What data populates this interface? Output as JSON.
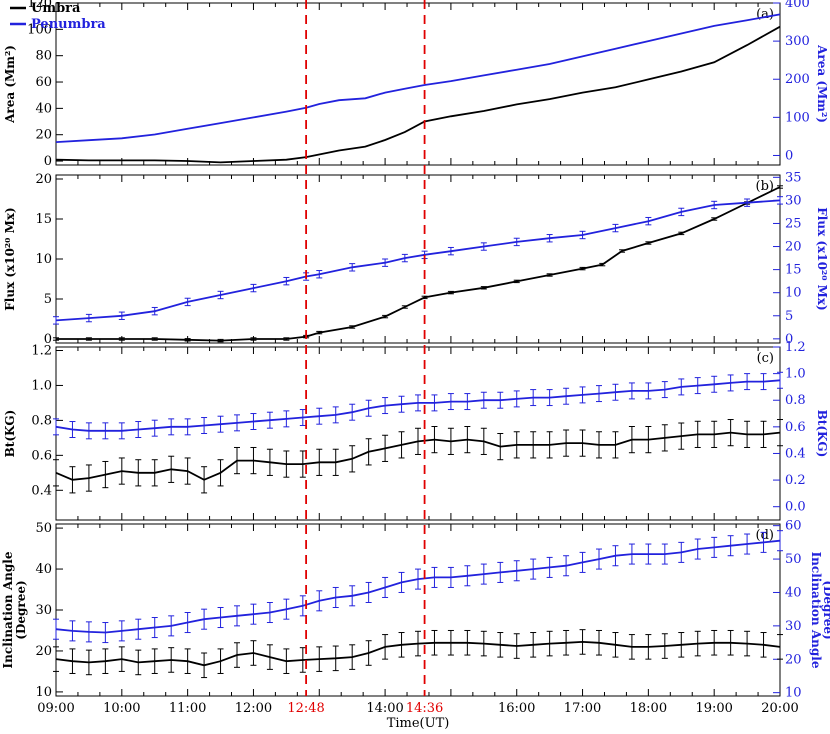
{
  "colors": {
    "umbra": "#000000",
    "penumbra": "#2222dd",
    "marker": "#e00000"
  },
  "legend": [
    {
      "label": "Umbra",
      "color": "#000000"
    },
    {
      "label": "Penumbra",
      "color": "#2222dd"
    }
  ],
  "time_axis": {
    "label": "Time(UT)",
    "range_hours": [
      9,
      20
    ],
    "ticks": [
      {
        "t": 9,
        "label": "09:00"
      },
      {
        "t": 10,
        "label": "10:00"
      },
      {
        "t": 11,
        "label": "11:00"
      },
      {
        "t": 12,
        "label": "12:00"
      },
      {
        "t": 14,
        "label": "14:00"
      },
      {
        "t": 16,
        "label": "16:00"
      },
      {
        "t": 17,
        "label": "17:00"
      },
      {
        "t": 18,
        "label": "18:00"
      },
      {
        "t": 19,
        "label": "19:00"
      },
      {
        "t": 20,
        "label": "20:00"
      }
    ],
    "markers": [
      {
        "t": 12.8,
        "label": "12:48"
      },
      {
        "t": 14.6,
        "label": "14:36"
      }
    ]
  },
  "chart_data": [
    {
      "type": "line",
      "panel": "(a)",
      "left_axis": {
        "label": "Area (Mm²)",
        "ylim": [
          -3,
          120
        ],
        "ticks": [
          0,
          20,
          40,
          60,
          80,
          100,
          120
        ]
      },
      "right_axis": {
        "label": "Area (Mm²)",
        "ylim": [
          -25,
          400
        ],
        "ticks": [
          0,
          100,
          200,
          300,
          400
        ]
      },
      "series": [
        {
          "name": "Umbra",
          "axis": "left",
          "x": [
            9,
            9.5,
            10,
            10.5,
            11,
            11.5,
            12,
            12.5,
            12.8,
            13.3,
            13.7,
            14,
            14.3,
            14.6,
            15,
            15.5,
            16,
            16.5,
            17,
            17.5,
            18,
            18.5,
            19,
            19.5,
            20
          ],
          "y": [
            1,
            0.5,
            0.5,
            0.5,
            0,
            -1,
            0,
            1,
            3,
            8,
            11,
            16,
            22,
            30,
            34,
            38,
            43,
            47,
            52,
            56,
            62,
            68,
            75,
            88,
            102
          ]
        },
        {
          "name": "Penumbra",
          "axis": "right",
          "x": [
            9,
            9.5,
            10,
            10.5,
            11,
            11.5,
            12,
            12.5,
            12.8,
            13,
            13.3,
            13.7,
            14,
            14.3,
            14.6,
            15,
            15.5,
            16,
            16.5,
            17,
            17.5,
            18,
            18.5,
            19,
            19.5,
            20
          ],
          "y": [
            35,
            40,
            45,
            55,
            70,
            85,
            100,
            115,
            125,
            135,
            145,
            150,
            165,
            175,
            185,
            195,
            210,
            225,
            240,
            260,
            280,
            300,
            320,
            340,
            355,
            370
          ]
        }
      ]
    },
    {
      "type": "line",
      "panel": "(b)",
      "left_axis": {
        "label": "Flux (x10²⁰ Mx)",
        "ylim": [
          -0.5,
          20.5
        ],
        "ticks": [
          0,
          5,
          10,
          15,
          20
        ]
      },
      "right_axis": {
        "label": "Flux (x10²⁰ Mx)",
        "ylim": [
          -0.9,
          35.5
        ],
        "ticks": [
          0,
          5,
          10,
          15,
          20,
          25,
          30,
          35
        ]
      },
      "series": [
        {
          "name": "Umbra",
          "axis": "left",
          "err": 0.15,
          "x": [
            9,
            9.5,
            10,
            10.5,
            11,
            11.5,
            12,
            12.5,
            12.8,
            13,
            13.5,
            14,
            14.3,
            14.6,
            15,
            15.5,
            16,
            16.5,
            17,
            17.3,
            17.6,
            18,
            18.5,
            19,
            19.5,
            20
          ],
          "y": [
            0,
            0,
            0,
            0,
            -0.1,
            -0.2,
            0,
            0,
            0.3,
            0.8,
            1.5,
            2.8,
            4,
            5.2,
            5.8,
            6.4,
            7.2,
            8,
            8.8,
            9.3,
            11,
            12,
            13.2,
            15,
            17,
            19
          ]
        },
        {
          "name": "Penumbra",
          "axis": "right",
          "err": 0.8,
          "x": [
            9,
            9.5,
            10,
            10.5,
            11,
            11.5,
            12,
            12.5,
            12.8,
            13,
            13.5,
            14,
            14.3,
            14.6,
            15,
            15.5,
            16,
            16.5,
            17,
            17.5,
            18,
            18.5,
            19,
            19.5,
            20
          ],
          "y": [
            4,
            4.5,
            5,
            6,
            8,
            9.5,
            11,
            12.5,
            13.5,
            14,
            15.5,
            16.5,
            17.5,
            18.2,
            19,
            20,
            21,
            21.8,
            22.5,
            24,
            25.5,
            27.5,
            29,
            29.5,
            30
          ]
        }
      ]
    },
    {
      "type": "line",
      "panel": "(c)",
      "left_axis": {
        "label": "Bt(KG)",
        "ylim": [
          0.23,
          1.22
        ],
        "ticks": [
          0.4,
          0.6,
          0.8,
          1.0,
          1.2
        ]
      },
      "right_axis": {
        "label": "Bt(KG)",
        "ylim": [
          -0.1,
          1.2
        ],
        "ticks": [
          0.0,
          0.2,
          0.4,
          0.6,
          0.8,
          1.0,
          1.2
        ]
      },
      "series": [
        {
          "name": "Umbra",
          "axis": "left",
          "err": 0.075,
          "x": [
            9,
            9.25,
            9.5,
            9.75,
            10,
            10.25,
            10.5,
            10.75,
            11,
            11.25,
            11.5,
            11.75,
            12,
            12.25,
            12.5,
            12.75,
            13,
            13.25,
            13.5,
            13.75,
            14,
            14.25,
            14.5,
            14.75,
            15,
            15.25,
            15.5,
            15.75,
            16,
            16.25,
            16.5,
            16.75,
            17,
            17.25,
            17.5,
            17.75,
            18,
            18.25,
            18.5,
            18.75,
            19,
            19.25,
            19.5,
            19.75,
            20
          ],
          "y": [
            0.5,
            0.46,
            0.47,
            0.49,
            0.51,
            0.5,
            0.5,
            0.52,
            0.51,
            0.46,
            0.5,
            0.57,
            0.57,
            0.56,
            0.55,
            0.55,
            0.56,
            0.56,
            0.58,
            0.62,
            0.64,
            0.66,
            0.68,
            0.69,
            0.68,
            0.69,
            0.68,
            0.65,
            0.66,
            0.66,
            0.66,
            0.67,
            0.67,
            0.66,
            0.66,
            0.69,
            0.69,
            0.7,
            0.71,
            0.72,
            0.72,
            0.73,
            0.72,
            0.72,
            0.73
          ]
        },
        {
          "name": "Penumbra",
          "axis": "right",
          "err": 0.06,
          "x": [
            9,
            9.25,
            9.5,
            9.75,
            10,
            10.25,
            10.5,
            10.75,
            11,
            11.25,
            11.5,
            11.75,
            12,
            12.25,
            12.5,
            12.75,
            13,
            13.25,
            13.5,
            13.75,
            14,
            14.25,
            14.5,
            14.75,
            15,
            15.25,
            15.5,
            15.75,
            16,
            16.25,
            16.5,
            16.75,
            17,
            17.25,
            17.5,
            17.75,
            18,
            18.25,
            18.5,
            18.75,
            19,
            19.25,
            19.5,
            19.75,
            20
          ],
          "y": [
            0.6,
            0.58,
            0.57,
            0.57,
            0.57,
            0.58,
            0.59,
            0.6,
            0.6,
            0.61,
            0.62,
            0.63,
            0.64,
            0.65,
            0.66,
            0.67,
            0.68,
            0.69,
            0.71,
            0.74,
            0.76,
            0.77,
            0.78,
            0.78,
            0.79,
            0.79,
            0.8,
            0.8,
            0.81,
            0.82,
            0.82,
            0.83,
            0.84,
            0.85,
            0.86,
            0.87,
            0.87,
            0.88,
            0.9,
            0.91,
            0.92,
            0.93,
            0.94,
            0.94,
            0.95
          ]
        }
      ]
    },
    {
      "type": "line",
      "panel": "(d)",
      "left_axis": {
        "label": "Inclination Angle (Degree)",
        "ylim": [
          9,
          51
        ],
        "ticks": [
          10,
          20,
          30,
          40,
          50
        ]
      },
      "right_axis": {
        "label": "Inclination Angle (Degree)",
        "ylim": [
          9,
          60.5
        ],
        "ticks": [
          10,
          20,
          30,
          40,
          50,
          60
        ]
      },
      "series": [
        {
          "name": "Umbra",
          "axis": "left",
          "err": 3,
          "x": [
            9,
            9.25,
            9.5,
            9.75,
            10,
            10.25,
            10.5,
            10.75,
            11,
            11.25,
            11.5,
            11.75,
            12,
            12.25,
            12.5,
            12.75,
            13,
            13.25,
            13.5,
            13.75,
            14,
            14.25,
            14.5,
            14.75,
            15,
            15.25,
            15.5,
            15.75,
            16,
            16.25,
            16.5,
            16.75,
            17,
            17.25,
            17.5,
            17.75,
            18,
            18.25,
            18.5,
            18.75,
            19,
            19.25,
            19.5,
            19.75,
            20
          ],
          "y": [
            18,
            17.5,
            17.2,
            17.5,
            18,
            17.2,
            17.5,
            17.8,
            17.5,
            16.5,
            17.5,
            19,
            19.5,
            18.5,
            17.5,
            17.8,
            18,
            18.2,
            18.5,
            19.5,
            21,
            21.5,
            21.8,
            22,
            22,
            22,
            21.8,
            21.5,
            21.2,
            21.5,
            21.8,
            22,
            22.2,
            22,
            21.5,
            21,
            21,
            21.2,
            21.5,
            21.8,
            22,
            22,
            21.8,
            21.5,
            21
          ]
        },
        {
          "name": "Penumbra",
          "axis": "right",
          "err": 3,
          "x": [
            9,
            9.25,
            9.5,
            9.75,
            10,
            10.25,
            10.5,
            10.75,
            11,
            11.25,
            11.5,
            11.75,
            12,
            12.25,
            12.5,
            12.75,
            13,
            13.25,
            13.5,
            13.75,
            14,
            14.25,
            14.5,
            14.75,
            15,
            15.25,
            15.5,
            15.75,
            16,
            16.25,
            16.5,
            16.75,
            17,
            17.25,
            17.5,
            17.75,
            18,
            18.25,
            18.5,
            18.75,
            19,
            19.25,
            19.5,
            19.75,
            20
          ],
          "y": [
            29,
            28.5,
            28.2,
            28,
            28.5,
            29,
            29.5,
            30,
            31,
            32,
            32.5,
            33,
            33.5,
            34,
            35,
            36,
            37.5,
            38.5,
            39,
            40,
            41.5,
            43,
            44,
            44.5,
            44.5,
            45,
            45.5,
            46,
            46.5,
            47,
            47.5,
            48,
            49,
            50,
            51,
            51.5,
            51.5,
            51.5,
            52,
            53,
            53.5,
            54,
            54.5,
            55,
            55.5
          ]
        }
      ]
    }
  ]
}
